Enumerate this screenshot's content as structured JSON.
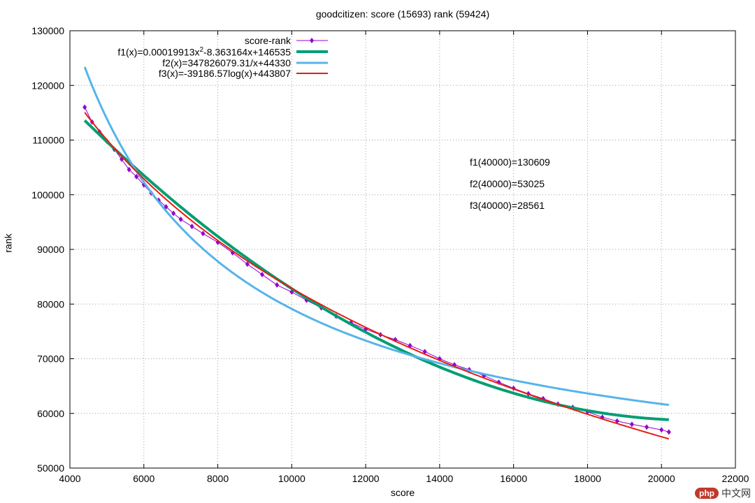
{
  "chart_data": {
    "type": "scatter",
    "title": "goodcitizen: score (15693) rank (59424)",
    "xlabel": "score",
    "ylabel": "rank",
    "xlim": [
      4000,
      22000
    ],
    "ylim": [
      50000,
      130000
    ],
    "xticks": [
      4000,
      6000,
      8000,
      10000,
      12000,
      14000,
      16000,
      18000,
      20000,
      22000
    ],
    "yticks": [
      50000,
      60000,
      70000,
      80000,
      90000,
      100000,
      110000,
      120000,
      130000
    ],
    "grid": true,
    "legend_position": "top-left",
    "series": [
      {
        "name": "score-rank",
        "kind": "points-line",
        "color": "#9400d3",
        "points": [
          [
            4400,
            116000
          ],
          [
            4600,
            113300
          ],
          [
            4800,
            111500
          ],
          [
            5000,
            109800
          ],
          [
            5200,
            108300
          ],
          [
            5400,
            106500
          ],
          [
            5600,
            104600
          ],
          [
            5800,
            103300
          ],
          [
            6000,
            101800
          ],
          [
            6200,
            100300
          ],
          [
            6400,
            99000
          ],
          [
            6600,
            97800
          ],
          [
            6800,
            96600
          ],
          [
            7000,
            95500
          ],
          [
            7300,
            94200
          ],
          [
            7600,
            92900
          ],
          [
            8000,
            91300
          ],
          [
            8400,
            89400
          ],
          [
            8800,
            87300
          ],
          [
            9200,
            85400
          ],
          [
            9600,
            83500
          ],
          [
            10000,
            82200
          ],
          [
            10400,
            80700
          ],
          [
            10800,
            79300
          ],
          [
            11200,
            77800
          ],
          [
            11600,
            76600
          ],
          [
            12000,
            75400
          ],
          [
            12400,
            74400
          ],
          [
            12800,
            73500
          ],
          [
            13200,
            72400
          ],
          [
            13600,
            71300
          ],
          [
            14000,
            70000
          ],
          [
            14400,
            68900
          ],
          [
            14800,
            68000
          ],
          [
            15200,
            66900
          ],
          [
            15600,
            65700
          ],
          [
            16000,
            64600
          ],
          [
            16400,
            63600
          ],
          [
            16800,
            62700
          ],
          [
            17200,
            61700
          ],
          [
            17600,
            61100
          ],
          [
            18000,
            60300
          ],
          [
            18400,
            59300
          ],
          [
            18800,
            58600
          ],
          [
            19200,
            58000
          ],
          [
            19600,
            57500
          ],
          [
            20000,
            57000
          ],
          [
            20200,
            56600
          ]
        ]
      },
      {
        "name": "f1(x)=0.00019913x^2-8.363164x+146535",
        "kind": "function",
        "color": "#009e73",
        "coefficients": [
          0.00019913,
          -8.363164,
          146535
        ],
        "domain": [
          4400,
          20200
        ]
      },
      {
        "name": "f2(x)=347826079.31/x+44330",
        "kind": "function",
        "color": "#56b4e9",
        "coefficients": [
          347826079.31,
          44330
        ],
        "domain": [
          4400,
          20200
        ]
      },
      {
        "name": "f3(x)=-39186.57log(x)+443807",
        "kind": "function",
        "color": "#e51e10",
        "coefficients": [
          -39186.57,
          443807
        ],
        "domain": [
          4400,
          20200
        ]
      }
    ],
    "annotations": [
      "f1(40000)=130609",
      "f2(40000)=53025",
      "f3(40000)=28561"
    ]
  },
  "legend": {
    "score_rank": "score-rank",
    "f1_prefix": "f1(x)=0.00019913x",
    "f1_exponent": "2",
    "f1_suffix": "-8.363164x+146535",
    "f2": "f2(x)=347826079.31/x+44330",
    "f3": "f3(x)=-39186.57log(x)+443807"
  },
  "watermark": {
    "badge": "php",
    "text": "中文网"
  }
}
